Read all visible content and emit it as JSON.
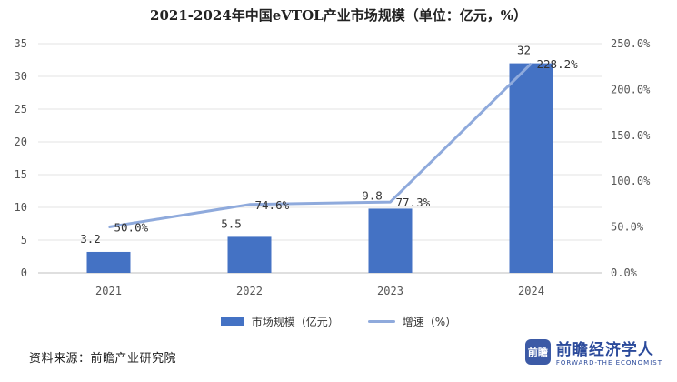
{
  "title": "2021-2024年中国eVTOL产业市场规模（单位：亿元，%）",
  "source": "资料来源：前瞻产业研究院",
  "brand": {
    "logo_text": "前瞻",
    "name_cn": "前瞻经济学人",
    "name_en": "FORWARD-THE ECONOMIST"
  },
  "legend": {
    "bar_label": "市场规模（亿元）",
    "line_label": "增速（%）"
  },
  "colors": {
    "bar": "#4472c4",
    "line": "#8faadc"
  },
  "chart_data": {
    "type": "bar",
    "categories": [
      "2021",
      "2022",
      "2023",
      "2024"
    ],
    "series": [
      {
        "name": "市场规模（亿元）",
        "type": "bar",
        "axis": "left",
        "values": [
          3.2,
          5.5,
          9.8,
          32
        ],
        "labels": [
          "3.2",
          "5.5",
          "9.8",
          "32"
        ]
      },
      {
        "name": "增速（%）",
        "type": "line",
        "axis": "right",
        "values": [
          50.0,
          74.6,
          77.3,
          228.2
        ],
        "labels": [
          "50.0%",
          "74.6%",
          "77.3%",
          "228.2%"
        ]
      }
    ],
    "y_left": {
      "min": 0,
      "max": 35,
      "ticks": [
        "0",
        "5",
        "10",
        "15",
        "20",
        "25",
        "30",
        "35"
      ]
    },
    "y_right": {
      "min": 0,
      "max": 250,
      "ticks": [
        "0.0%",
        "50.0%",
        "100.0%",
        "150.0%",
        "200.0%",
        "250.0%"
      ]
    },
    "grid": true,
    "legend_position": "bottom"
  }
}
